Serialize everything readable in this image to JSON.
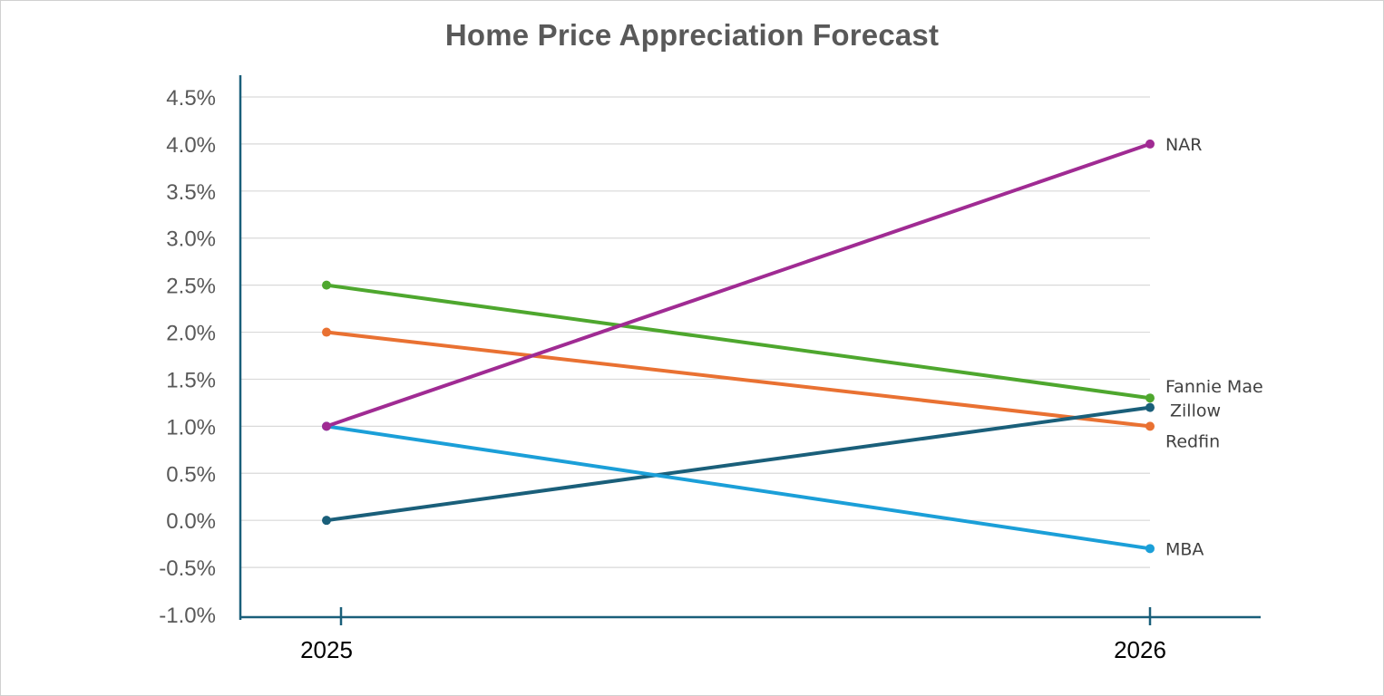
{
  "chart_data": {
    "type": "line",
    "title": "Home Price Appreciation Forecast",
    "xlabel": "",
    "ylabel": "",
    "categories": [
      "2025",
      "2026"
    ],
    "ylim": [
      -1.0,
      4.5
    ],
    "yticks": [
      "4.5%",
      "4.0%",
      "3.5%",
      "3.0%",
      "2.5%",
      "2.0%",
      "1.5%",
      "1.0%",
      "0.5%",
      "0.0%",
      "-0.5%",
      "-1.0%"
    ],
    "grid": true,
    "legend": "none",
    "series": [
      {
        "name": "Fannie Mae",
        "values": [
          2.5,
          1.3
        ],
        "color": "#4ea72e"
      },
      {
        "name": "Redfin",
        "values": [
          2.0,
          1.0
        ],
        "color": "#e97132"
      },
      {
        "name": "Zillow",
        "values": [
          0.0,
          1.2
        ],
        "color": "#1a5f7a"
      },
      {
        "name": "MBA",
        "values": [
          1.0,
          -0.3
        ],
        "color": "#1b9fd8"
      },
      {
        "name": "NAR",
        "values": [
          1.0,
          4.0
        ],
        "color": "#a02b93"
      }
    ]
  }
}
